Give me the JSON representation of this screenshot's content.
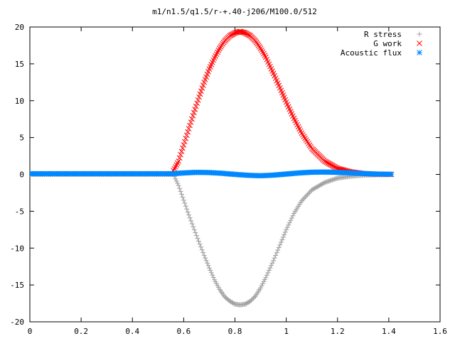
{
  "chart_data": {
    "type": "scatter",
    "title": "m1/n1.5/q1.5/r-+.40-j206/M100.0/512",
    "xlabel": "",
    "ylabel": "",
    "xlim": [
      0,
      1.6
    ],
    "ylim": [
      -20,
      20
    ],
    "xticks": [
      0,
      0.2,
      0.4,
      0.6,
      0.8,
      1,
      1.2,
      1.4,
      1.6
    ],
    "yticks": [
      -20,
      -15,
      -10,
      -5,
      0,
      5,
      10,
      15,
      20
    ],
    "xtick_labels": [
      "0",
      "0.2",
      "0.4",
      "0.6",
      "0.8",
      "1",
      "1.2",
      "1.4",
      "1.6"
    ],
    "ytick_labels": [
      "-20",
      "-15",
      "-10",
      "-5",
      "0",
      "5",
      "10",
      "15",
      "20"
    ],
    "grid": false,
    "legend_position": "top-right",
    "series": [
      {
        "name": "R stress",
        "marker": "plus",
        "color": "#a0a0a0",
        "points": [
          [
            0.0,
            0
          ],
          [
            0.1,
            0
          ],
          [
            0.2,
            0
          ],
          [
            0.3,
            0
          ],
          [
            0.4,
            0
          ],
          [
            0.5,
            0
          ],
          [
            0.56,
            0
          ],
          [
            0.58,
            -1.5
          ],
          [
            0.6,
            -3.5
          ],
          [
            0.62,
            -5.5
          ],
          [
            0.65,
            -8.3
          ],
          [
            0.68,
            -11.0
          ],
          [
            0.7,
            -12.7
          ],
          [
            0.72,
            -14.3
          ],
          [
            0.74,
            -15.6
          ],
          [
            0.76,
            -16.6
          ],
          [
            0.78,
            -17.2
          ],
          [
            0.8,
            -17.6
          ],
          [
            0.82,
            -17.7
          ],
          [
            0.84,
            -17.6
          ],
          [
            0.86,
            -17.2
          ],
          [
            0.88,
            -16.5
          ],
          [
            0.9,
            -15.4
          ],
          [
            0.92,
            -14.0
          ],
          [
            0.95,
            -11.7
          ],
          [
            0.98,
            -9.2
          ],
          [
            1.0,
            -7.5
          ],
          [
            1.03,
            -5.3
          ],
          [
            1.06,
            -3.6
          ],
          [
            1.1,
            -2.1
          ],
          [
            1.15,
            -1.1
          ],
          [
            1.2,
            -0.5
          ],
          [
            1.25,
            -0.25
          ],
          [
            1.3,
            -0.1
          ],
          [
            1.35,
            -0.05
          ],
          [
            1.41,
            0
          ]
        ]
      },
      {
        "name": "G work",
        "marker": "cross",
        "color": "#ff0000",
        "points": [
          [
            0.56,
            0.5
          ],
          [
            0.58,
            1.8
          ],
          [
            0.6,
            4.0
          ],
          [
            0.62,
            6.2
          ],
          [
            0.64,
            8.4
          ],
          [
            0.66,
            10.5
          ],
          [
            0.68,
            12.5
          ],
          [
            0.7,
            14.3
          ],
          [
            0.72,
            15.8
          ],
          [
            0.74,
            17.1
          ],
          [
            0.76,
            18.1
          ],
          [
            0.78,
            18.8
          ],
          [
            0.8,
            19.2
          ],
          [
            0.82,
            19.4
          ],
          [
            0.84,
            19.2
          ],
          [
            0.86,
            18.8
          ],
          [
            0.88,
            18.1
          ],
          [
            0.9,
            17.1
          ],
          [
            0.92,
            15.9
          ],
          [
            0.95,
            13.7
          ],
          [
            0.98,
            11.4
          ],
          [
            1.0,
            9.8
          ],
          [
            1.03,
            7.6
          ],
          [
            1.06,
            5.6
          ],
          [
            1.1,
            3.5
          ],
          [
            1.15,
            1.8
          ],
          [
            1.2,
            0.8
          ],
          [
            1.25,
            0.35
          ],
          [
            1.3,
            0.12
          ],
          [
            1.35,
            0.03
          ],
          [
            1.41,
            0
          ]
        ]
      },
      {
        "name": "Acoustic flux",
        "marker": "star",
        "color": "#0088ff",
        "points": [
          [
            0.0,
            0.1
          ],
          [
            0.1,
            0.1
          ],
          [
            0.2,
            0.1
          ],
          [
            0.3,
            0.1
          ],
          [
            0.4,
            0.1
          ],
          [
            0.5,
            0.1
          ],
          [
            0.56,
            0.1
          ],
          [
            0.6,
            0.2
          ],
          [
            0.65,
            0.28
          ],
          [
            0.7,
            0.25
          ],
          [
            0.75,
            0.15
          ],
          [
            0.8,
            0.0
          ],
          [
            0.85,
            -0.12
          ],
          [
            0.9,
            -0.18
          ],
          [
            0.95,
            -0.1
          ],
          [
            1.0,
            0.05
          ],
          [
            1.05,
            0.2
          ],
          [
            1.1,
            0.3
          ],
          [
            1.15,
            0.32
          ],
          [
            1.2,
            0.28
          ],
          [
            1.25,
            0.2
          ],
          [
            1.3,
            0.12
          ],
          [
            1.35,
            0.05
          ],
          [
            1.41,
            0.02
          ]
        ]
      }
    ]
  }
}
